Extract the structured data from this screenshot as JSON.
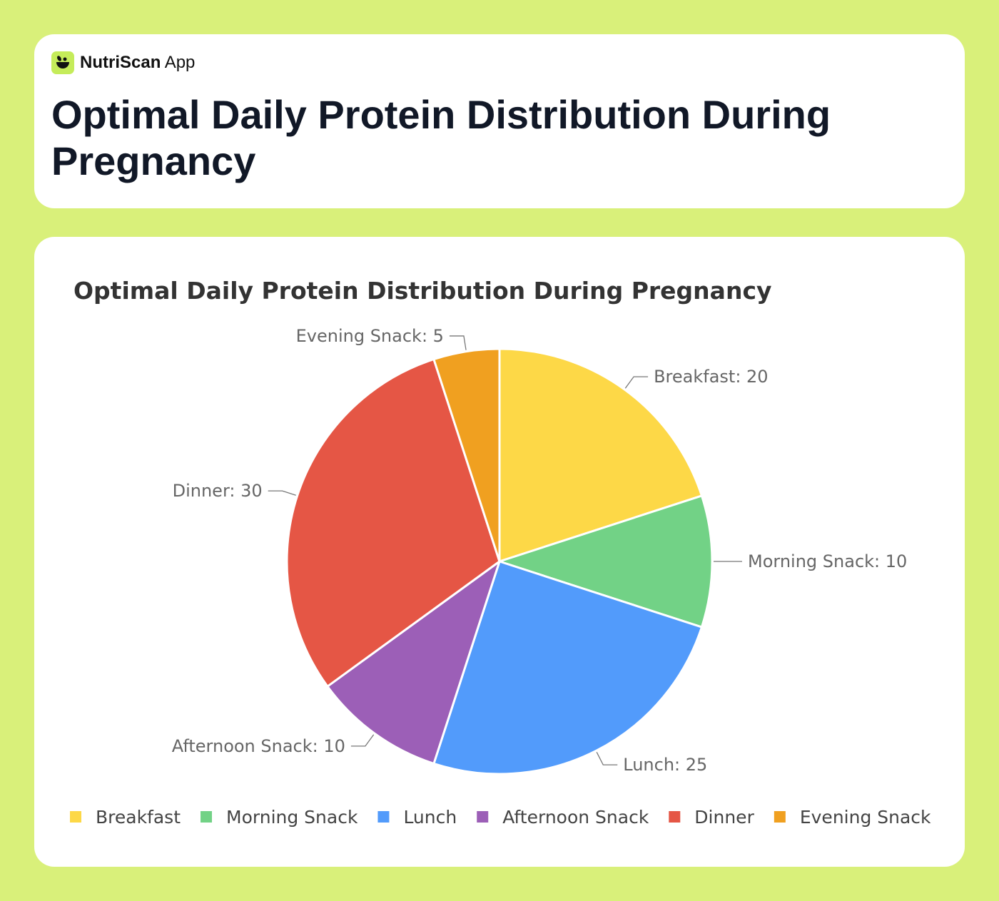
{
  "brand": {
    "name": "NutriScan",
    "suffix": "App",
    "icon": "leaf-bowl-icon"
  },
  "header": {
    "title": "Optimal Daily Protein Distribution During Pregnancy"
  },
  "colors": {
    "background": "#d9f07a"
  },
  "chart_data": {
    "type": "pie",
    "title": "Optimal Daily Protein Distribution During Pregnancy",
    "categories": [
      "Breakfast",
      "Morning Snack",
      "Lunch",
      "Afternoon Snack",
      "Dinner",
      "Evening Snack"
    ],
    "values": [
      20,
      10,
      25,
      10,
      30,
      5
    ],
    "colors": [
      "#fdd847",
      "#72d286",
      "#529bfb",
      "#9c5fb7",
      "#e55645",
      "#f0a020"
    ],
    "data_labels": [
      "Breakfast: 20",
      "Morning Snack: 10",
      "Lunch: 25",
      "Afternoon Snack: 10",
      "Dinner: 30",
      "Evening Snack: 5"
    ],
    "legend_position": "bottom"
  }
}
